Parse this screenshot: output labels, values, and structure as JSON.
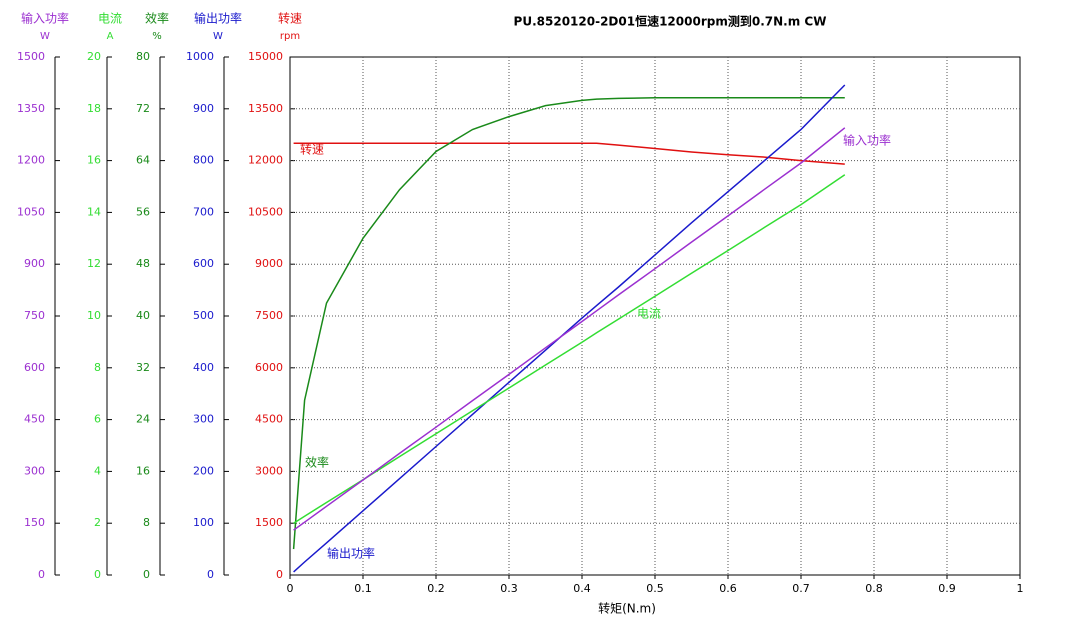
{
  "chart_data": {
    "type": "line",
    "title": "PU.8520120-2D01恒速12000rpm测到0.7N.m  CW",
    "xlabel": "转矩(N.m)",
    "x": [
      0.005,
      0.02,
      0.05,
      0.1,
      0.15,
      0.2,
      0.25,
      0.3,
      0.35,
      0.4,
      0.42,
      0.45,
      0.5,
      0.55,
      0.6,
      0.65,
      0.7,
      0.76
    ],
    "xlim": [
      0,
      1
    ],
    "xticks": [
      0,
      0.1,
      0.2,
      0.3,
      0.4,
      0.5,
      0.6,
      0.7,
      0.8,
      0.9,
      1
    ],
    "grid": true,
    "y_axes": [
      {
        "name": "输入功率",
        "unit": "W",
        "color": "#9b30d0",
        "ylim": [
          0,
          1500
        ],
        "yticks": [
          0,
          150,
          300,
          450,
          600,
          750,
          900,
          1050,
          1200,
          1350,
          1500
        ]
      },
      {
        "name": "电流",
        "unit": "A",
        "color": "#33dd33",
        "ylim": [
          0,
          20
        ],
        "yticks": [
          0,
          2,
          4,
          6,
          8,
          10,
          12,
          14,
          16,
          18,
          20
        ]
      },
      {
        "name": "效率",
        "unit": "%",
        "color": "#1a8a1a",
        "ylim": [
          0,
          80
        ],
        "yticks": [
          0,
          8,
          16,
          24,
          32,
          40,
          48,
          56,
          64,
          72,
          80
        ]
      },
      {
        "name": "输出功率",
        "unit": "W",
        "color": "#1a1acc",
        "ylim": [
          0,
          1000
        ],
        "yticks": [
          0,
          100,
          200,
          300,
          400,
          500,
          600,
          700,
          800,
          900,
          1000
        ]
      },
      {
        "name": "转速",
        "unit": "rpm",
        "color": "#e01010",
        "ylim": [
          0,
          15000
        ],
        "yticks": [
          0,
          1500,
          3000,
          4500,
          6000,
          7500,
          9000,
          10500,
          12000,
          13500,
          15000
        ]
      }
    ],
    "series": [
      {
        "name": "转速",
        "color": "#e01010",
        "axis": 4,
        "values": [
          12500,
          12500,
          12500,
          12500,
          12500,
          12500,
          12500,
          12500,
          12500,
          12500,
          12500,
          12450,
          12350,
          12250,
          12170,
          12100,
          12000,
          11900
        ]
      },
      {
        "name": "效率",
        "color": "#1a8a1a",
        "axis": 2,
        "values": [
          4,
          27,
          42,
          52,
          59.5,
          65.4,
          68.8,
          70.8,
          72.5,
          73.3,
          73.5,
          73.6,
          73.7,
          73.7,
          73.7,
          73.7,
          73.7,
          73.7
        ]
      },
      {
        "name": "输出功率",
        "color": "#1a1acc",
        "axis": 3,
        "values": [
          6,
          25,
          62,
          124,
          186,
          248,
          310,
          372,
          434,
          496,
          520,
          556,
          618,
          680,
          740,
          800,
          860,
          946
        ]
      },
      {
        "name": "电流",
        "color": "#33dd33",
        "axis": 1,
        "values": [
          2.0,
          2.27,
          2.8,
          3.68,
          4.57,
          5.45,
          6.34,
          7.22,
          8.11,
          8.99,
          9.35,
          9.88,
          10.76,
          11.65,
          12.53,
          13.42,
          14.3,
          15.45
        ]
      },
      {
        "name": "输入功率",
        "color": "#9b30d0",
        "axis": 0,
        "values": [
          130,
          153,
          199,
          275,
          352,
          428,
          505,
          581,
          658,
          734,
          765,
          811,
          887,
          964,
          1040,
          1117,
          1193,
          1295
        ]
      }
    ]
  }
}
